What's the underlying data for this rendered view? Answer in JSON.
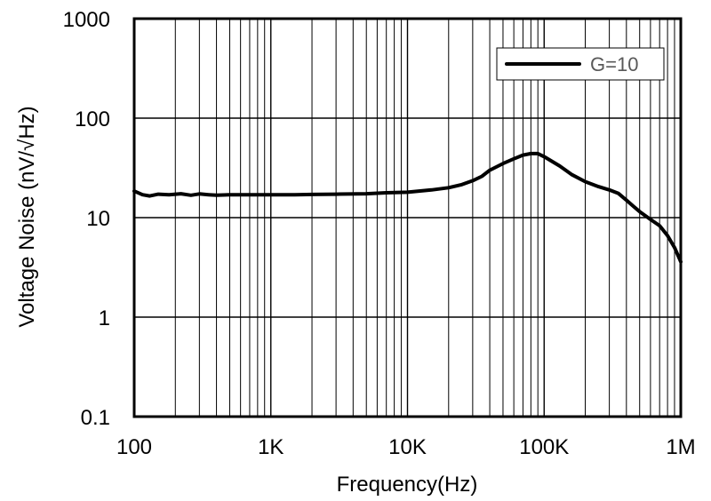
{
  "chart_data": {
    "type": "line",
    "title": "",
    "xlabel": "Frequency(Hz)",
    "ylabel": "Voltage Noise (nV/√Hz)",
    "x_scale": "log",
    "y_scale": "log",
    "xlim": [
      100,
      1000000
    ],
    "ylim": [
      0.1,
      1000
    ],
    "grid": true,
    "legend_position": "top-right",
    "x_ticks": [
      {
        "value": 100,
        "label": "100"
      },
      {
        "value": 1000,
        "label": "1K"
      },
      {
        "value": 10000,
        "label": "10K"
      },
      {
        "value": 100000,
        "label": "100K"
      },
      {
        "value": 1000000,
        "label": "1M"
      }
    ],
    "y_ticks": [
      {
        "value": 0.1,
        "label": "0.1"
      },
      {
        "value": 1,
        "label": "1"
      },
      {
        "value": 10,
        "label": "10"
      },
      {
        "value": 100,
        "label": "100"
      },
      {
        "value": 1000,
        "label": "1000"
      }
    ],
    "series": [
      {
        "name": "G=10",
        "color": "#000000",
        "x": [
          100,
          115,
          130,
          150,
          180,
          220,
          260,
          300,
          350,
          400,
          500,
          700,
          1000,
          1500,
          2000,
          3000,
          5000,
          7000,
          10000,
          15000,
          20000,
          25000,
          30000,
          35000,
          40000,
          50000,
          60000,
          70000,
          80000,
          90000,
          100000,
          130000,
          160000,
          200000,
          250000,
          300000,
          350000,
          400000,
          450000,
          500000,
          600000,
          700000,
          800000,
          900000,
          1000000
        ],
        "y": [
          18.5,
          17.0,
          16.5,
          17.2,
          17.0,
          17.4,
          16.8,
          17.3,
          17.0,
          16.8,
          17.0,
          17.0,
          17.0,
          17.0,
          17.1,
          17.2,
          17.4,
          17.8,
          18.0,
          19.0,
          20.0,
          21.5,
          23.5,
          26.0,
          30.0,
          35.0,
          39.0,
          42.5,
          44.0,
          44.0,
          41.0,
          33.0,
          27.0,
          23.0,
          20.5,
          19.0,
          17.5,
          15.0,
          13.0,
          11.5,
          9.6,
          8.3,
          6.6,
          5.0,
          3.6
        ]
      }
    ]
  }
}
